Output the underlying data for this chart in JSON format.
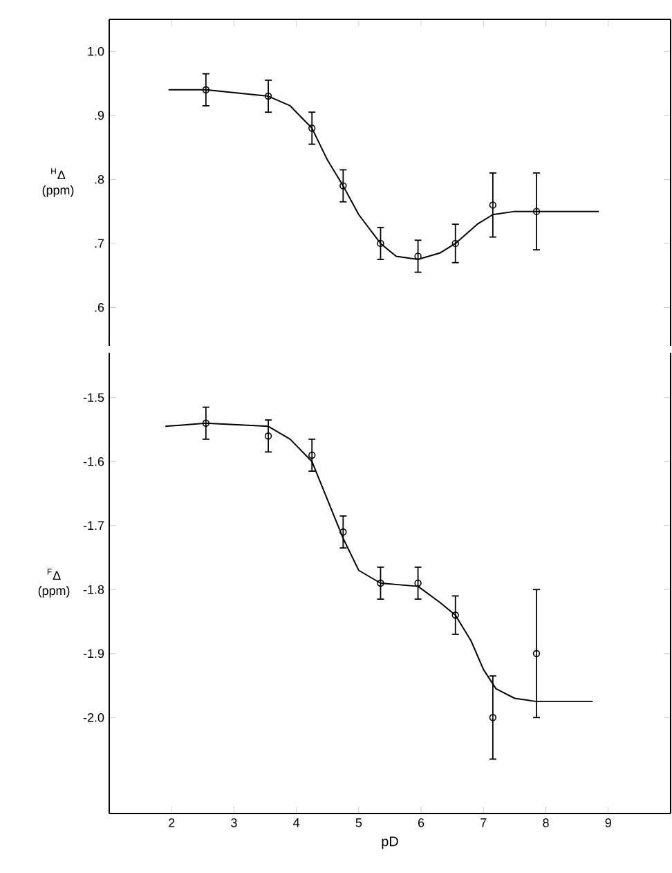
{
  "chart_data": [
    {
      "type": "scatter",
      "ylabel": "$^{H}$Δ (ppm)",
      "xlim": [
        1,
        10
      ],
      "xticks": [
        2,
        3,
        4,
        5,
        6,
        7,
        8,
        9
      ],
      "ylim": [
        0.54,
        1.05
      ],
      "yticks": [
        {
          "value": 0.6,
          "label": ".6"
        },
        {
          "value": 0.7,
          "label": ".7"
        },
        {
          "value": 0.8,
          "label": ".8"
        },
        {
          "value": 0.9,
          "label": ".9"
        },
        {
          "value": 1.0,
          "label": "1.0"
        }
      ],
      "tick_labels": "y",
      "grid": false,
      "marker": "circle",
      "line_style": "solid",
      "series": [
        {
          "color": "#000000",
          "x": [
            2.55,
            3.55,
            4.25,
            4.75,
            5.35,
            5.95,
            6.55,
            7.15,
            7.85
          ],
          "values": [
            0.94,
            0.93,
            0.88,
            0.79,
            0.7,
            0.68,
            0.7,
            0.76,
            0.75
          ],
          "errors": [
            0.025,
            0.025,
            0.025,
            0.025,
            0.025,
            0.025,
            0.03,
            0.05,
            0.06
          ]
        },
        {
          "type": "line",
          "marker": "none",
          "color": "#000000",
          "x": [
            1.95,
            2.55,
            3.55,
            3.9,
            4.25,
            4.5,
            4.75,
            5.0,
            5.35,
            5.6,
            5.95,
            6.3,
            6.55,
            6.9,
            7.15,
            7.5,
            7.85,
            8.85
          ],
          "values": [
            0.94,
            0.94,
            0.93,
            0.915,
            0.88,
            0.83,
            0.79,
            0.745,
            0.7,
            0.68,
            0.675,
            0.685,
            0.7,
            0.73,
            0.745,
            0.75,
            0.75,
            0.75
          ]
        }
      ]
    },
    {
      "type": "scatter",
      "xlabel": "pD",
      "ylabel": "$^{F}$Δ (ppm)",
      "xlim": [
        1,
        10
      ],
      "xticks": [
        2,
        3,
        4,
        5,
        6,
        7,
        8,
        9
      ],
      "ylim": [
        -2.15,
        -1.43
      ],
      "yticks": [
        {
          "value": -2.0,
          "label": "-2.0"
        },
        -1.9,
        -1.8,
        -1.7,
        -1.6,
        -1.5
      ],
      "grid": false,
      "marker": "circle",
      "line_style": "solid",
      "series": [
        {
          "color": "#000000",
          "x": [
            2.55,
            3.55,
            4.25,
            4.75,
            5.35,
            5.95,
            6.55,
            7.15,
            7.85
          ],
          "values": [
            -1.54,
            -1.56,
            -1.59,
            -1.71,
            -1.79,
            -1.79,
            -1.84,
            -2.0,
            -1.9
          ],
          "errors": [
            0.025,
            0.025,
            0.025,
            0.025,
            0.025,
            0.025,
            0.03,
            0.065,
            0.1
          ]
        },
        {
          "type": "line",
          "marker": "none",
          "color": "#000000",
          "x": [
            1.9,
            2.55,
            3.55,
            3.9,
            4.25,
            4.5,
            4.75,
            5.0,
            5.35,
            5.95,
            6.3,
            6.55,
            6.8,
            7.0,
            7.2,
            7.5,
            7.85,
            8.75
          ],
          "values": [
            -1.545,
            -1.54,
            -1.545,
            -1.565,
            -1.6,
            -1.66,
            -1.72,
            -1.77,
            -1.79,
            -1.795,
            -1.82,
            -1.84,
            -1.88,
            -1.925,
            -1.955,
            -1.97,
            -1.975,
            -1.975
          ]
        }
      ]
    }
  ]
}
